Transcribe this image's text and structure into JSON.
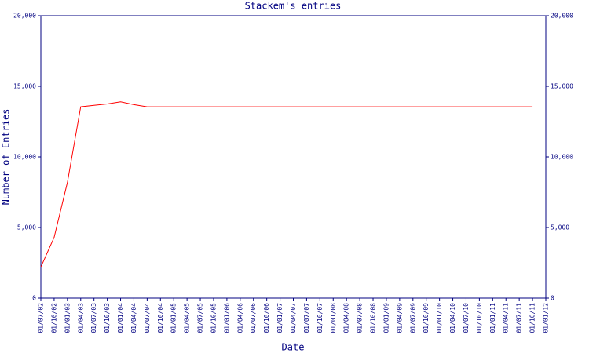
{
  "chart_data": {
    "type": "line",
    "title": "Stackem's entries",
    "x_label": "Date",
    "y_label": "Number of Entries",
    "categories": [
      "01/07/02",
      "01/10/02",
      "01/01/03",
      "01/04/03",
      "01/07/03",
      "01/10/03",
      "01/01/04",
      "01/04/04",
      "01/07/04",
      "01/10/04",
      "01/01/05",
      "01/04/05",
      "01/07/05",
      "01/10/05",
      "01/01/06",
      "01/04/06",
      "01/07/06",
      "01/10/06",
      "01/01/07",
      "01/04/07",
      "01/07/07",
      "01/10/07",
      "01/01/08",
      "01/04/08",
      "01/07/08",
      "01/10/08",
      "01/01/09",
      "01/04/09",
      "01/07/09",
      "01/10/09",
      "01/01/10",
      "01/04/10",
      "01/07/10",
      "01/10/10",
      "01/01/11",
      "01/04/11",
      "01/07/11",
      "01/10/11",
      "01/01/12"
    ],
    "series": [
      {
        "name": "Entries",
        "color": "#ff0000",
        "values": [
          2200,
          4300,
          8200,
          13550,
          13650,
          13750,
          13900,
          13700,
          13550,
          13550,
          13550,
          13550,
          13550,
          13550,
          13550,
          13550,
          13550,
          13550,
          13550,
          13550,
          13550,
          13550,
          13550,
          13550,
          13550,
          13550,
          13550,
          13550,
          13550,
          13550,
          13550,
          13550,
          13550,
          13550,
          13550,
          13550,
          13550,
          13550,
          null
        ]
      }
    ],
    "ylim": [
      0,
      20000
    ],
    "yticks": [
      0,
      {
        "value": 5000,
        "label": "5,000"
      },
      {
        "value": 10000,
        "label": "10,000"
      },
      {
        "value": 15000,
        "label": "15,000"
      },
      {
        "value": 20000,
        "label": "20,000"
      }
    ],
    "y2lim": [
      0,
      20000
    ],
    "y2ticks": [
      0,
      {
        "value": 5000,
        "label": "5,000"
      },
      {
        "value": 10000,
        "label": "10,000"
      },
      {
        "value": 15000,
        "label": "15,000"
      },
      {
        "value": 20000,
        "label": "20,000"
      }
    ],
    "axis_color": "#000080"
  }
}
